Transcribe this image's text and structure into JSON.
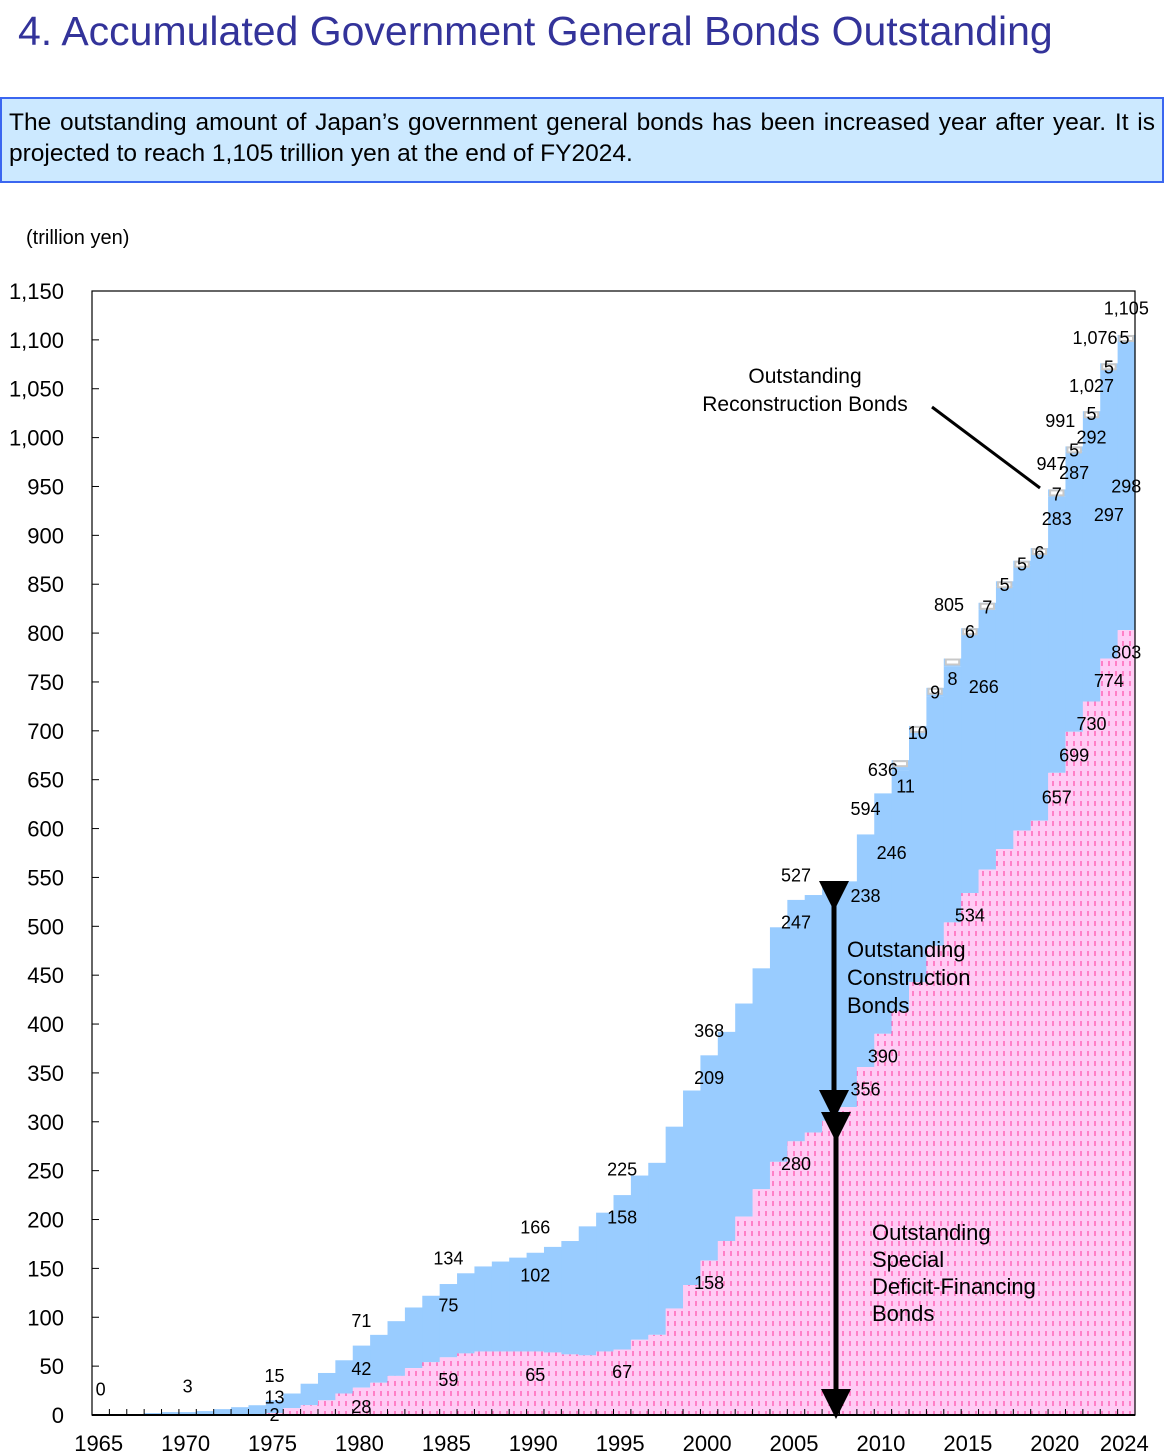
{
  "header": {
    "title": "4. Accumulated Government General Bonds Outstanding",
    "description": "The outstanding amount of Japan’s government general bonds has been increased year after year. It is projected to reach 1,105 trillion yen at the end of FY2024."
  },
  "colors": {
    "construction": "#99ccff",
    "deficit": "#ffccf5",
    "deficit_dash": "#ff3399",
    "reconstruction": "#c8c8c8",
    "title": "#33339a"
  },
  "chart_data": {
    "type": "area",
    "title": "Accumulated Government General Bonds Outstanding",
    "ylabel": "(trillion yen)",
    "xlabel": "",
    "ylim": [
      0,
      1150
    ],
    "yticks": [
      0,
      50,
      100,
      150,
      200,
      250,
      300,
      350,
      400,
      450,
      500,
      550,
      600,
      650,
      700,
      750,
      800,
      850,
      900,
      950,
      1000,
      1050,
      1100,
      1150
    ],
    "ytick_labels": [
      "0",
      "50",
      "100",
      "150",
      "200",
      "250",
      "300",
      "350",
      "400",
      "450",
      "500",
      "550",
      "600",
      "650",
      "700",
      "750",
      "800",
      "850",
      "900",
      "950",
      "1,000",
      "1,050",
      "1,100",
      "1,150"
    ],
    "xtick_labels": [
      "1965",
      "1970",
      "1975",
      "1980",
      "1985",
      "1990",
      "1995",
      "2000",
      "2005",
      "2010",
      "2015",
      "2020",
      "2024"
    ],
    "xtick_years": [
      1965,
      1970,
      1975,
      1980,
      1985,
      1990,
      1995,
      2000,
      2005,
      2010,
      2015,
      2020,
      2024
    ],
    "years": [
      1965,
      1966,
      1967,
      1968,
      1969,
      1970,
      1971,
      1972,
      1973,
      1974,
      1975,
      1976,
      1977,
      1978,
      1979,
      1980,
      1981,
      1982,
      1983,
      1984,
      1985,
      1986,
      1987,
      1988,
      1989,
      1990,
      1991,
      1992,
      1993,
      1994,
      1995,
      1996,
      1997,
      1998,
      1999,
      2000,
      2001,
      2002,
      2003,
      2004,
      2005,
      2006,
      2007,
      2008,
      2009,
      2010,
      2011,
      2012,
      2013,
      2014,
      2015,
      2016,
      2017,
      2018,
      2019,
      2020,
      2021,
      2022,
      2023,
      2024
    ],
    "series": [
      {
        "name": "Outstanding Total",
        "values": [
          0,
          1,
          1,
          2,
          3,
          3,
          4,
          6,
          8,
          10,
          15,
          22,
          32,
          43,
          56,
          71,
          82,
          96,
          110,
          122,
          134,
          145,
          152,
          157,
          161,
          166,
          172,
          178,
          193,
          207,
          225,
          245,
          258,
          295,
          332,
          368,
          392,
          421,
          457,
          499,
          527,
          532,
          541,
          546,
          594,
          636,
          670,
          705,
          744,
          774,
          805,
          831,
          853,
          874,
          887,
          947,
          991,
          1027,
          1076,
          1105
        ]
      },
      {
        "name": "Outstanding Special Deficit-Financing Bonds",
        "values": [
          0,
          0,
          0,
          0,
          0,
          0,
          0,
          0,
          0,
          0,
          2,
          7,
          10,
          15,
          22,
          28,
          33,
          40,
          48,
          54,
          59,
          63,
          65,
          65,
          65,
          65,
          64,
          62,
          61,
          65,
          67,
          77,
          82,
          109,
          133,
          158,
          178,
          203,
          231,
          259,
          280,
          289,
          301,
          315,
          356,
          390,
          413,
          443,
          480,
          504,
          534,
          558,
          579,
          598,
          608,
          657,
          699,
          730,
          774,
          803
        ]
      },
      {
        "name": "Outstanding Reconstruction Bonds",
        "values": [
          0,
          0,
          0,
          0,
          0,
          0,
          0,
          0,
          0,
          0,
          0,
          0,
          0,
          0,
          0,
          0,
          0,
          0,
          0,
          0,
          0,
          0,
          0,
          0,
          0,
          0,
          0,
          0,
          0,
          0,
          0,
          0,
          0,
          0,
          0,
          0,
          0,
          0,
          0,
          0,
          0,
          0,
          0,
          0,
          0,
          0,
          11,
          10,
          9,
          8,
          6,
          7,
          5,
          5,
          6,
          7,
          5,
          5,
          5,
          5
        ]
      }
    ],
    "data_labels": [
      {
        "text": "0",
        "x": 1965,
        "y": 27
      },
      {
        "text": "3",
        "x": 1970,
        "y": 30
      },
      {
        "text": "15",
        "x": 1975,
        "y": 41
      },
      {
        "text": "13",
        "x": 1975,
        "y": 19
      },
      {
        "text": "2",
        "x": 1975,
        "y": 1
      },
      {
        "text": "71",
        "x": 1980,
        "y": 97
      },
      {
        "text": "42",
        "x": 1980,
        "y": 48
      },
      {
        "text": "28",
        "x": 1980,
        "y": 9
      },
      {
        "text": "134",
        "x": 1985,
        "y": 161
      },
      {
        "text": "75",
        "x": 1985,
        "y": 113
      },
      {
        "text": "59",
        "x": 1985,
        "y": 37
      },
      {
        "text": "166",
        "x": 1990,
        "y": 193
      },
      {
        "text": "102",
        "x": 1990,
        "y": 144
      },
      {
        "text": "65",
        "x": 1990,
        "y": 42
      },
      {
        "text": "225",
        "x": 1995,
        "y": 252
      },
      {
        "text": "158",
        "x": 1995,
        "y": 203
      },
      {
        "text": "67",
        "x": 1995,
        "y": 45
      },
      {
        "text": "368",
        "x": 2000,
        "y": 394
      },
      {
        "text": "209",
        "x": 2000,
        "y": 346
      },
      {
        "text": "158",
        "x": 2000,
        "y": 136
      },
      {
        "text": "527",
        "x": 2005,
        "y": 553
      },
      {
        "text": "247",
        "x": 2005,
        "y": 505
      },
      {
        "text": "280",
        "x": 2005,
        "y": 258
      },
      {
        "text": "594",
        "x": 2009,
        "y": 621
      },
      {
        "text": "238",
        "x": 2009,
        "y": 532
      },
      {
        "text": "356",
        "x": 2009,
        "y": 334
      },
      {
        "text": "636",
        "x": 2010,
        "y": 661
      },
      {
        "text": "246",
        "x": 2010.5,
        "y": 576
      },
      {
        "text": "390",
        "x": 2010,
        "y": 368
      },
      {
        "text": "11",
        "x": 2011.3,
        "y": 644
      },
      {
        "text": "10",
        "x": 2012,
        "y": 699
      },
      {
        "text": "9",
        "x": 2013,
        "y": 740
      },
      {
        "text": "8",
        "x": 2014,
        "y": 754
      },
      {
        "text": "266",
        "x": 2015.8,
        "y": 746
      },
      {
        "text": "805",
        "x": 2013.8,
        "y": 830
      },
      {
        "text": "6",
        "x": 2015,
        "y": 802
      },
      {
        "text": "534",
        "x": 2015,
        "y": 512
      },
      {
        "text": "7",
        "x": 2016,
        "y": 827
      },
      {
        "text": "5",
        "x": 2017,
        "y": 850
      },
      {
        "text": "5",
        "x": 2018,
        "y": 871
      },
      {
        "text": "6",
        "x": 2019,
        "y": 883
      },
      {
        "text": "283",
        "x": 2020,
        "y": 918
      },
      {
        "text": "7",
        "x": 2020,
        "y": 943
      },
      {
        "text": "947",
        "x": 2019.7,
        "y": 974
      },
      {
        "text": "657",
        "x": 2020,
        "y": 633
      },
      {
        "text": "287",
        "x": 2021,
        "y": 965
      },
      {
        "text": "5",
        "x": 2021,
        "y": 988
      },
      {
        "text": "991",
        "x": 2020.2,
        "y": 1018
      },
      {
        "text": "699",
        "x": 2021,
        "y": 676
      },
      {
        "text": "292",
        "x": 2022,
        "y": 1001
      },
      {
        "text": "5",
        "x": 2022,
        "y": 1025
      },
      {
        "text": "1,027",
        "x": 2022,
        "y": 1054
      },
      {
        "text": "730",
        "x": 2022,
        "y": 708
      },
      {
        "text": "297",
        "x": 2023,
        "y": 922
      },
      {
        "text": "5",
        "x": 2023,
        "y": 1073
      },
      {
        "text": "1,076",
        "x": 2022.2,
        "y": 1103
      },
      {
        "text": "774",
        "x": 2023,
        "y": 752
      },
      {
        "text": "298",
        "x": 2024,
        "y": 951
      },
      {
        "text": "5",
        "x": 2023.9,
        "y": 1103
      },
      {
        "text": "1,105",
        "x": 2024,
        "y": 1133
      },
      {
        "text": "803",
        "x": 2024,
        "y": 781
      }
    ],
    "annotations": {
      "reconstruction": [
        "Outstanding",
        "Reconstruction Bonds"
      ],
      "construction": [
        "Outstanding",
        "Construction",
        "Bonds"
      ],
      "deficit": [
        "Outstanding",
        "Special",
        "Deficit-Financing",
        "Bonds"
      ]
    },
    "grid": false
  }
}
